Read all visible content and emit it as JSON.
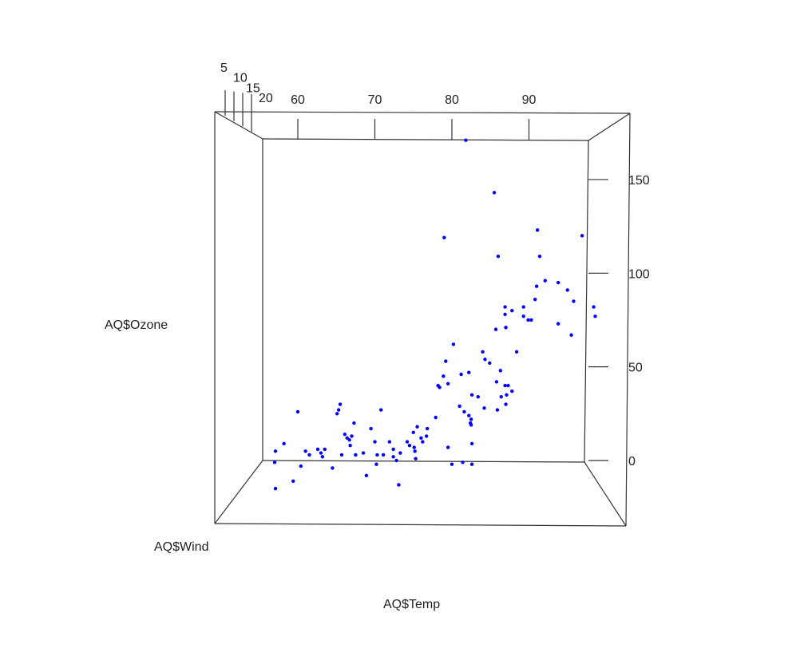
{
  "chart_data": {
    "type": "scatter",
    "title": "",
    "xlabel": "AQ$Temp",
    "ylabel": "AQ$Ozone",
    "zlabel": "AQ$Wind",
    "xlim": [
      56,
      98
    ],
    "ylim": [
      0,
      170
    ],
    "xticks": [
      60,
      70,
      80,
      90
    ],
    "yticks": [
      0,
      50,
      100,
      150
    ],
    "zticks": [
      5,
      10,
      15,
      20
    ],
    "color": "#0000ff",
    "projected_points": [
      [
        57.1,
        -15
      ],
      [
        57.0,
        -1
      ],
      [
        57.1,
        5
      ],
      [
        58.2,
        9
      ],
      [
        59.4,
        -11
      ],
      [
        60.0,
        26
      ],
      [
        60.4,
        -3
      ],
      [
        61.0,
        5
      ],
      [
        61.5,
        3
      ],
      [
        62.6,
        6
      ],
      [
        63.5,
        6
      ],
      [
        63.2,
        2
      ],
      [
        63.0,
        4
      ],
      [
        64.5,
        -4
      ],
      [
        65.7,
        3
      ],
      [
        65.3,
        27
      ],
      [
        65.5,
        30
      ],
      [
        65.1,
        25
      ],
      [
        66.4,
        12
      ],
      [
        66.7,
        11
      ],
      [
        66.1,
        14
      ],
      [
        66.8,
        8
      ],
      [
        67.3,
        20
      ],
      [
        67.0,
        13
      ],
      [
        67.5,
        3
      ],
      [
        68.5,
        4
      ],
      [
        68.9,
        -8
      ],
      [
        69.5,
        17
      ],
      [
        70.0,
        10
      ],
      [
        70.2,
        -2
      ],
      [
        70.3,
        3
      ],
      [
        70.8,
        27
      ],
      [
        71.1,
        3
      ],
      [
        71.9,
        10
      ],
      [
        72.4,
        2
      ],
      [
        72.4,
        6
      ],
      [
        72.8,
        0
      ],
      [
        73.1,
        -13
      ],
      [
        73.3,
        4
      ],
      [
        74.2,
        10
      ],
      [
        74.5,
        8
      ],
      [
        75.0,
        15
      ],
      [
        75.1,
        7
      ],
      [
        75.2,
        5
      ],
      [
        75.5,
        18
      ],
      [
        75.3,
        1
      ],
      [
        76.0,
        12
      ],
      [
        76.2,
        10
      ],
      [
        76.7,
        13
      ],
      [
        76.8,
        17
      ],
      [
        77.9,
        23
      ],
      [
        78.2,
        40
      ],
      [
        78.4,
        39
      ],
      [
        78.9,
        45
      ],
      [
        79.5,
        7
      ],
      [
        79.5,
        41
      ],
      [
        79.2,
        53
      ],
      [
        79.0,
        119
      ],
      [
        80.2,
        62
      ],
      [
        80.0,
        -2
      ],
      [
        81.2,
        46
      ],
      [
        81.0,
        29
      ],
      [
        81.6,
        26
      ],
      [
        81.4,
        -1
      ],
      [
        81.8,
        171
      ],
      [
        82.2,
        47
      ],
      [
        82.2,
        24
      ],
      [
        82.6,
        35
      ],
      [
        82.5,
        22
      ],
      [
        82.6,
        -2
      ],
      [
        82.5,
        19
      ],
      [
        82.6,
        9
      ],
      [
        82.4,
        20
      ],
      [
        83.4,
        34
      ],
      [
        84.2,
        28
      ],
      [
        84.0,
        58
      ],
      [
        84.3,
        54
      ],
      [
        84.9,
        52
      ],
      [
        85.5,
        143
      ],
      [
        85.7,
        70
      ],
      [
        85.8,
        42
      ],
      [
        86.0,
        109
      ],
      [
        85.9,
        27
      ],
      [
        86.3,
        48
      ],
      [
        86.4,
        34
      ],
      [
        86.9,
        40
      ],
      [
        86.9,
        78
      ],
      [
        87.0,
        71
      ],
      [
        86.9,
        82
      ],
      [
        87.0,
        30
      ],
      [
        87.1,
        35
      ],
      [
        87.3,
        40
      ],
      [
        87.8,
        37
      ],
      [
        87.8,
        80
      ],
      [
        88.4,
        58
      ],
      [
        89.3,
        77
      ],
      [
        89.3,
        82
      ],
      [
        89.9,
        75
      ],
      [
        90.3,
        75
      ],
      [
        91.0,
        93
      ],
      [
        90.8,
        86
      ],
      [
        91.1,
        123
      ],
      [
        91.4,
        109
      ],
      [
        92.1,
        96
      ],
      [
        93.8,
        95
      ],
      [
        93.8,
        73
      ],
      [
        95.0,
        91
      ],
      [
        95.5,
        67
      ],
      [
        95.8,
        85
      ],
      [
        96.9,
        120
      ],
      [
        98.4,
        82
      ],
      [
        98.6,
        77
      ]
    ]
  }
}
